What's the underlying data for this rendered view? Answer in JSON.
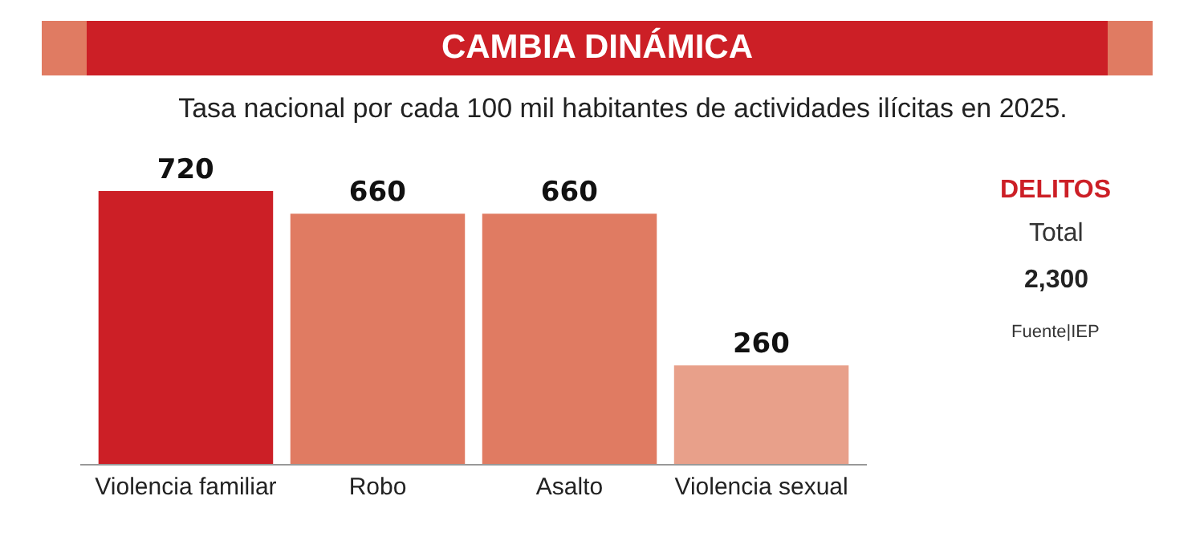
{
  "chart_data": {
    "type": "bar",
    "title": "CAMBIA DINÁMICA",
    "subtitle": "Tasa nacional por cada 100 mil habitantes de actividades ilícitas en 2025.",
    "categories": [
      "Violencia familiar",
      "Robo",
      "Asalto",
      "Violencia sexual"
    ],
    "values": [
      720,
      660,
      660,
      260
    ],
    "colors": [
      "#cc1f26",
      "#e07b62",
      "#e07b62",
      "#e8a08a"
    ],
    "data_labels": true,
    "grid": false,
    "tick_labels": "x",
    "annotations": [
      "DELITOS",
      "Total",
      "2,300",
      "Fuente|IEP"
    ]
  }
}
